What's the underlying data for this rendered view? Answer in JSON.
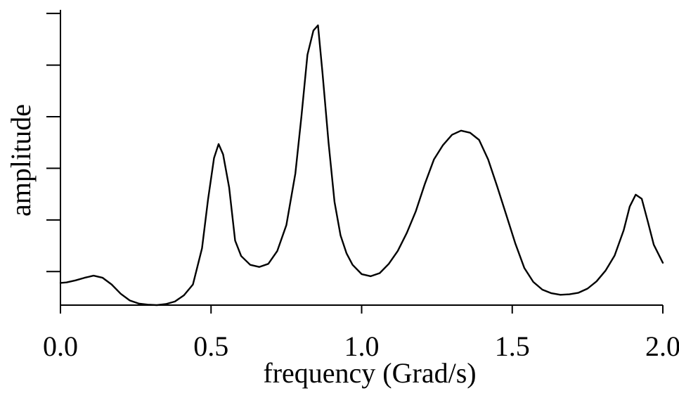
{
  "chart_data": {
    "type": "line",
    "title": "",
    "xlabel": "frequency (Grad/s)",
    "ylabel": "amplitude",
    "xlim": [
      0.0,
      2.0
    ],
    "ylim": [
      0,
      5.72
    ],
    "x_ticks": [
      0.0,
      0.5,
      1.0,
      1.5,
      2.0
    ],
    "x_tick_labels": [
      "0.0",
      "0.5",
      "1.0",
      "1.5",
      "2.0"
    ],
    "y_ticks": [
      0.65,
      1.65,
      2.65,
      3.65,
      4.65,
      5.65
    ],
    "y_tick_labels_shown": false,
    "grid": false,
    "legend": "none",
    "series": [
      {
        "x": [
          0.0,
          0.02,
          0.05,
          0.08,
          0.11,
          0.14,
          0.17,
          0.2,
          0.23,
          0.26,
          0.29,
          0.32,
          0.35,
          0.38,
          0.41,
          0.44,
          0.47,
          0.49,
          0.51,
          0.525,
          0.54,
          0.56,
          0.58,
          0.6,
          0.63,
          0.66,
          0.69,
          0.72,
          0.75,
          0.78,
          0.8,
          0.82,
          0.84,
          0.855,
          0.87,
          0.89,
          0.91,
          0.93,
          0.95,
          0.97,
          1.0,
          1.03,
          1.06,
          1.09,
          1.12,
          1.15,
          1.18,
          1.21,
          1.24,
          1.27,
          1.3,
          1.33,
          1.36,
          1.39,
          1.42,
          1.45,
          1.48,
          1.51,
          1.54,
          1.57,
          1.6,
          1.63,
          1.66,
          1.69,
          1.72,
          1.75,
          1.78,
          1.81,
          1.84,
          1.87,
          1.89,
          1.91,
          1.93,
          1.95,
          1.97,
          2.0
        ],
        "y": [
          0.43,
          0.44,
          0.48,
          0.53,
          0.57,
          0.53,
          0.4,
          0.22,
          0.09,
          0.03,
          0.01,
          0.0,
          0.02,
          0.07,
          0.19,
          0.4,
          1.1,
          2.05,
          2.85,
          3.12,
          2.92,
          2.28,
          1.25,
          0.95,
          0.78,
          0.74,
          0.8,
          1.05,
          1.55,
          2.55,
          3.65,
          4.85,
          5.32,
          5.42,
          4.5,
          3.15,
          2.0,
          1.35,
          1.0,
          0.78,
          0.6,
          0.56,
          0.62,
          0.8,
          1.05,
          1.4,
          1.82,
          2.35,
          2.82,
          3.1,
          3.3,
          3.38,
          3.34,
          3.2,
          2.82,
          2.3,
          1.75,
          1.2,
          0.72,
          0.45,
          0.3,
          0.23,
          0.2,
          0.21,
          0.24,
          0.32,
          0.46,
          0.67,
          0.96,
          1.45,
          1.91,
          2.14,
          2.06,
          1.62,
          1.17,
          0.82
        ]
      }
    ]
  }
}
